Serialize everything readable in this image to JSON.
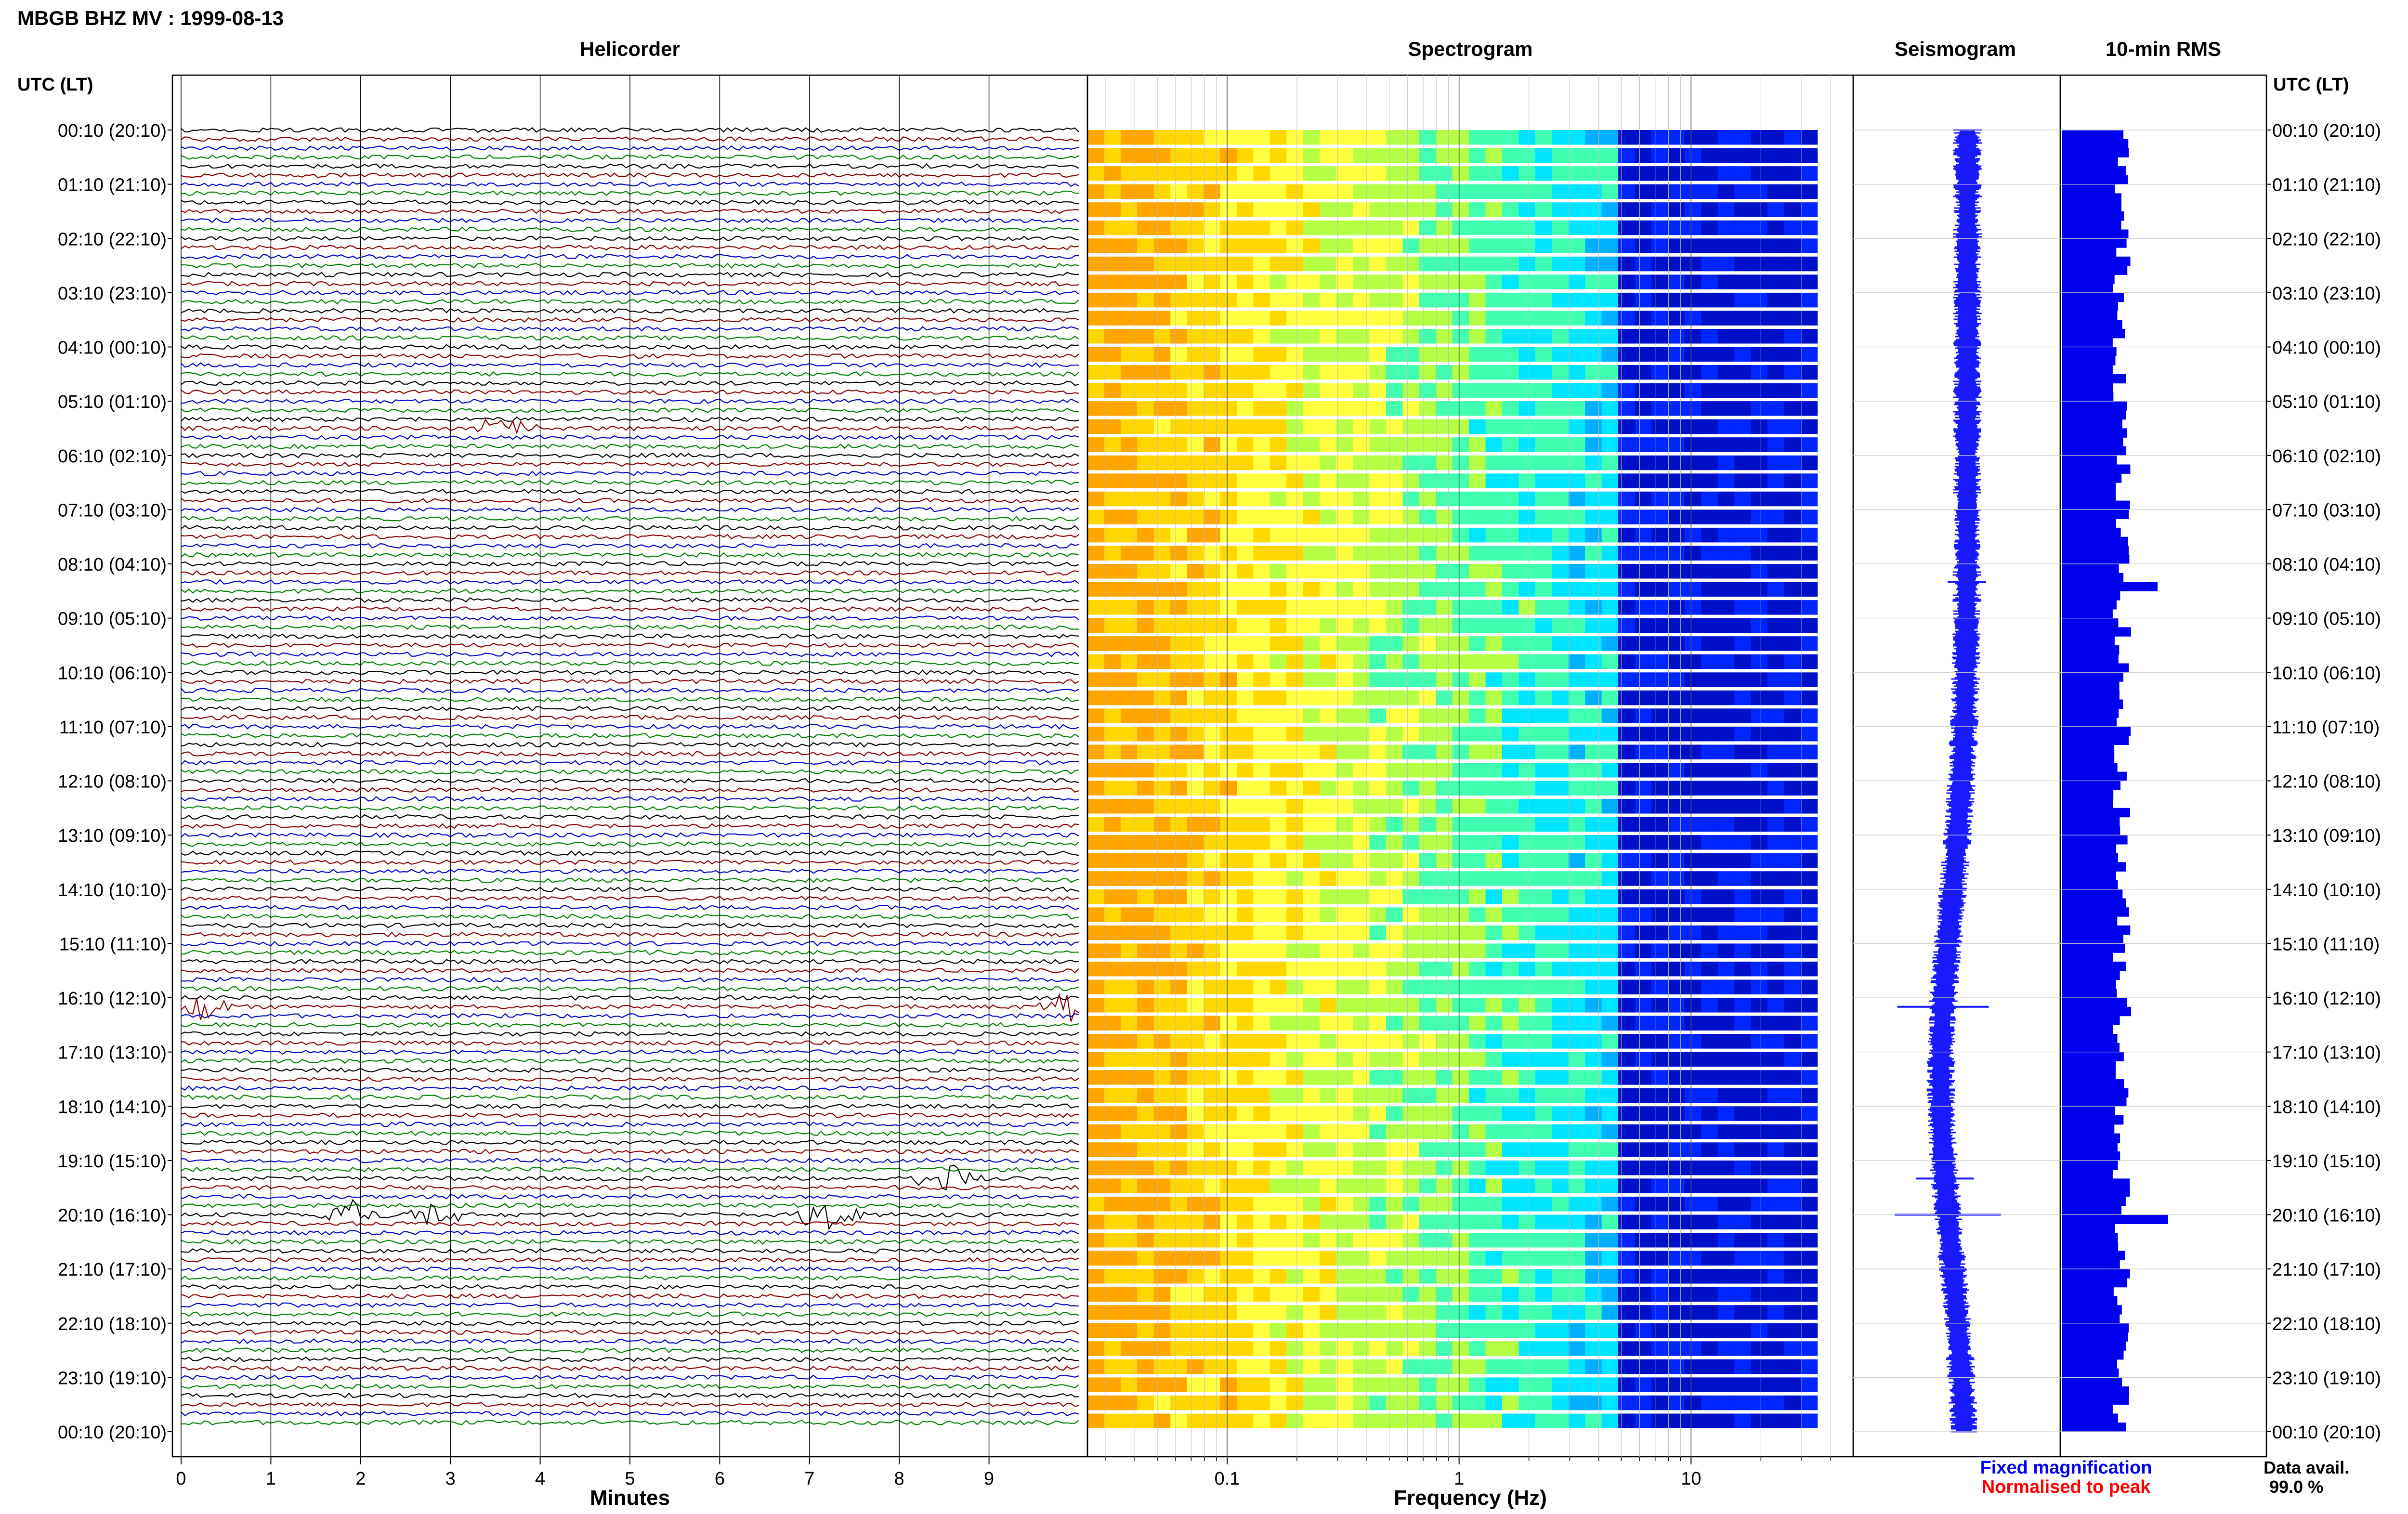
{
  "title": "MBGB BHZ MV : 1999-08-13",
  "panels": {
    "helicorder": "Helicorder",
    "spectrogram": "Spectrogram",
    "seismogram": "Seismogram",
    "rms": "10-min RMS"
  },
  "axis_label_left": "UTC (LT)",
  "axis_label_right": "UTC (LT)",
  "time_labels": [
    "00:10 (20:10)",
    "01:10 (21:10)",
    "02:10 (22:10)",
    "03:10 (23:10)",
    "04:10 (00:10)",
    "05:10 (01:10)",
    "06:10 (02:10)",
    "07:10 (03:10)",
    "08:10 (04:10)",
    "09:10 (05:10)",
    "10:10 (06:10)",
    "11:10 (07:10)",
    "12:10 (08:10)",
    "13:10 (09:10)",
    "14:10 (10:10)",
    "15:10 (11:10)",
    "16:10 (12:10)",
    "17:10 (13:10)",
    "18:10 (14:10)",
    "19:10 (15:10)",
    "20:10 (16:10)",
    "21:10 (17:10)",
    "22:10 (18:10)",
    "23:10 (19:10)",
    "00:10 (20:10)"
  ],
  "legend": {
    "fixed": "Fixed magnification",
    "fixed_color": "#0000ff",
    "normalised": "Normalised to peak",
    "normalised_color": "#ff0000",
    "avail_label": "Data avail.",
    "avail_value": "99.0 %"
  },
  "colors": {
    "trace_cycle": [
      "#000000",
      "#8b0000",
      "#0000cd",
      "#008000"
    ],
    "seismogram": "#1a1aff",
    "rms": "#0000ee"
  },
  "chart_data": [
    {
      "type": "line",
      "name": "helicorder",
      "title": "Helicorder",
      "xlabel": "Minutes",
      "ylabel": "UTC (LT)",
      "xlim": [
        0,
        10
      ],
      "x_ticks": [
        0,
        1,
        2,
        3,
        4,
        5,
        6,
        7,
        8,
        9
      ],
      "x_tick_labels": [
        "0",
        "1",
        "2",
        "3",
        "4",
        "5",
        "6",
        "7",
        "8",
        "9"
      ],
      "rows_per_hour": 6,
      "grid": true,
      "events": [
        {
          "row": 33,
          "minute": 3.6,
          "amp": 0.9,
          "color": "#8b0000"
        },
        {
          "row": 97,
          "minute": 0.2,
          "amp": 1.2,
          "color": "#008000"
        },
        {
          "row": 97,
          "minute": 9.9,
          "amp": 1.2,
          "color": "#0000cd"
        },
        {
          "row": 116,
          "minute": 8.5,
          "amp": 1.6,
          "color": "#000000"
        },
        {
          "row": 120,
          "minute": 1.9,
          "amp": 1.3,
          "color": "#000000"
        },
        {
          "row": 120,
          "minute": 2.8,
          "amp": 1.3,
          "color": "#000000"
        },
        {
          "row": 120,
          "minute": 7.2,
          "amp": 1.3,
          "color": "#000000"
        }
      ]
    },
    {
      "type": "heatmap",
      "name": "spectrogram",
      "title": "Spectrogram",
      "xlabel": "Frequency (Hz)",
      "xscale": "log",
      "xlim": [
        0.025,
        50
      ],
      "x_ticks": [
        0.1,
        1,
        10
      ],
      "x_tick_labels": [
        "0.1",
        "1",
        "10"
      ],
      "colormap": [
        "#ffa500",
        "#ffd700",
        "#ffff40",
        "#b5ff45",
        "#40ffb0",
        "#00e5ff",
        "#00b0ff",
        "#0064ff",
        "#0025ff",
        "#0010c8"
      ],
      "fmax_data": 35
    },
    {
      "type": "line",
      "name": "seismogram",
      "title": "Seismogram",
      "legend": [
        "Fixed magnification",
        "Normalised to peak"
      ]
    },
    {
      "type": "bar",
      "name": "rms",
      "title": "10-min RMS",
      "orientation": "horizontal",
      "spikes": [
        {
          "row": 50,
          "value": 1.8
        },
        {
          "row": 120,
          "value": 2.0
        },
        {
          "row": 97,
          "value": 1.3
        }
      ]
    }
  ]
}
